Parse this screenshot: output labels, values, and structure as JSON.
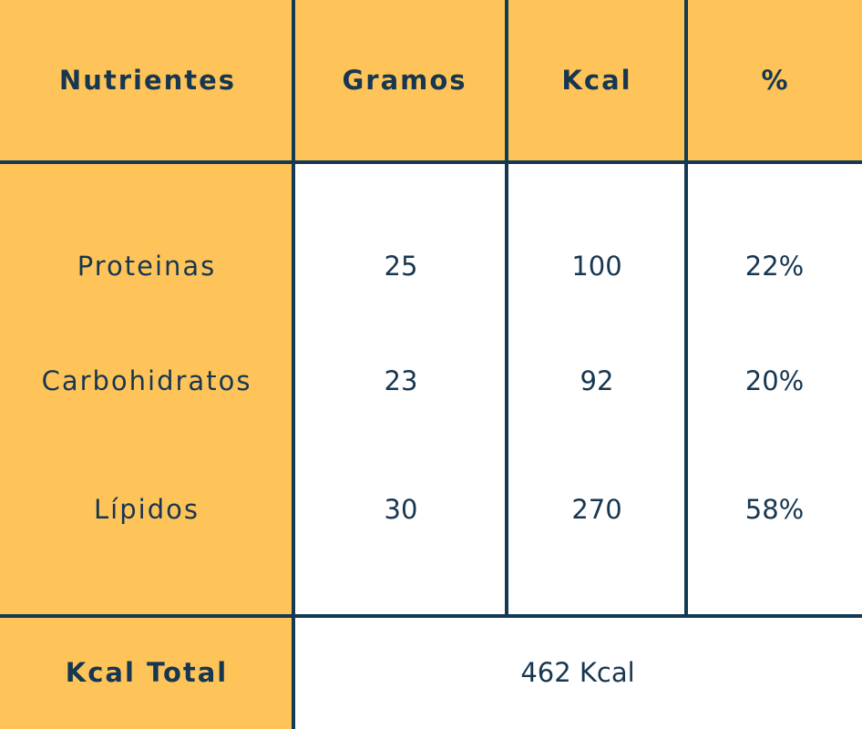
{
  "table": {
    "header": [
      "Nutrientes",
      "Gramos",
      "Kcal",
      "%"
    ],
    "rows": [
      [
        "Proteinas",
        "25",
        "100",
        "22%"
      ],
      [
        "Carbohidratos",
        "23",
        "92",
        "20%"
      ],
      [
        "Lípidos",
        "30",
        "270",
        "58%"
      ]
    ],
    "footer": {
      "label": "Kcal Total",
      "value": "462 Kcal"
    }
  }
}
